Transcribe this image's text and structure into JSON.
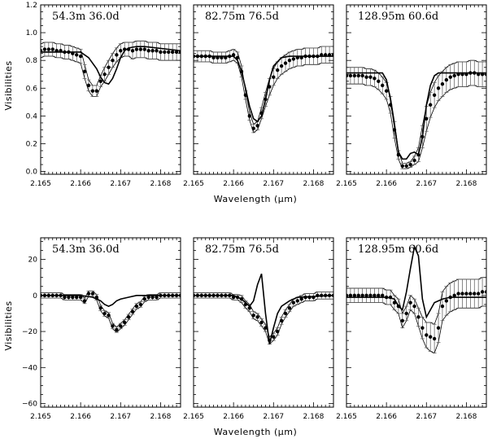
{
  "figure": {
    "top_ylabel": "Visibilities",
    "bottom_ylabel": "Visibilities",
    "top_xlabel": "Wavelength (μm)",
    "bottom_xlabel": "Wavelength (μm)"
  },
  "chart_data": [
    {
      "type": "scatter",
      "row": 0,
      "col": 0,
      "title": "54.3m  36.0d",
      "baseline": "54.3m",
      "angle": "36.0d",
      "xlim": [
        2.165,
        2.1685
      ],
      "ylim": [
        -0.02,
        1.2
      ],
      "yticks": [
        0.0,
        0.2,
        0.4,
        0.6,
        0.8,
        1.0,
        1.2
      ],
      "ytick_labels": [
        "0.0",
        "0.2",
        "0.4",
        "0.6",
        "0.8",
        "1.0",
        "1.2"
      ],
      "xticks": [
        2.165,
        2.166,
        2.167,
        2.168
      ],
      "xtick_labels": [
        "2.165",
        "2.166",
        "2.167",
        "2.168"
      ],
      "xlabel": "Wavelength (μm)",
      "ylabel": "Visibilities",
      "points": {
        "x": [
          2.165,
          2.1651,
          2.1652,
          2.1653,
          2.1654,
          2.1655,
          2.1656,
          2.1657,
          2.1658,
          2.1659,
          2.166,
          2.1661,
          2.1662,
          2.1663,
          2.1664,
          2.1665,
          2.1666,
          2.1667,
          2.1668,
          2.1669,
          2.167,
          2.1671,
          2.1672,
          2.1673,
          2.1674,
          2.1675,
          2.1676,
          2.1677,
          2.1678,
          2.1679,
          2.168,
          2.1681,
          2.1682,
          2.1683,
          2.1684,
          2.1685
        ],
        "y": [
          0.87,
          0.88,
          0.88,
          0.88,
          0.87,
          0.87,
          0.86,
          0.86,
          0.85,
          0.84,
          0.83,
          0.72,
          0.62,
          0.58,
          0.58,
          0.65,
          0.7,
          0.75,
          0.8,
          0.84,
          0.87,
          0.88,
          0.88,
          0.87,
          0.88,
          0.88,
          0.88,
          0.87,
          0.87,
          0.87,
          0.86,
          0.86,
          0.86,
          0.86,
          0.86,
          0.86
        ],
        "err": [
          0.05,
          0.05,
          0.05,
          0.05,
          0.05,
          0.05,
          0.05,
          0.05,
          0.05,
          0.05,
          0.05,
          0.05,
          0.04,
          0.04,
          0.04,
          0.04,
          0.05,
          0.05,
          0.05,
          0.05,
          0.05,
          0.05,
          0.05,
          0.06,
          0.06,
          0.06,
          0.06,
          0.06,
          0.06,
          0.06,
          0.06,
          0.06,
          0.06,
          0.06,
          0.06,
          0.06
        ]
      },
      "model": {
        "x": [
          2.165,
          2.166,
          2.1662,
          2.1664,
          2.1665,
          2.1666,
          2.1667,
          2.1668,
          2.1669,
          2.167,
          2.1671,
          2.1672,
          2.1674,
          2.1676,
          2.1685
        ],
        "y": [
          0.86,
          0.86,
          0.82,
          0.74,
          0.68,
          0.64,
          0.63,
          0.67,
          0.74,
          0.82,
          0.87,
          0.89,
          0.9,
          0.9,
          0.87
        ]
      }
    },
    {
      "type": "scatter",
      "row": 0,
      "col": 1,
      "title": "82.75m  76.5d",
      "baseline": "82.75m",
      "angle": "76.5d",
      "xlim": [
        2.165,
        2.1685
      ],
      "ylim": [
        -0.02,
        1.2
      ],
      "xticks": [
        2.165,
        2.166,
        2.167,
        2.168
      ],
      "xtick_labels": [
        "2.165",
        "2.166",
        "2.167",
        "2.168"
      ],
      "points": {
        "x": [
          2.165,
          2.1651,
          2.1652,
          2.1653,
          2.1654,
          2.1655,
          2.1656,
          2.1657,
          2.1658,
          2.1659,
          2.166,
          2.1661,
          2.1662,
          2.1663,
          2.1664,
          2.1665,
          2.1666,
          2.1667,
          2.1668,
          2.1669,
          2.167,
          2.1671,
          2.1672,
          2.1673,
          2.1674,
          2.1675,
          2.1676,
          2.1677,
          2.1678,
          2.1679,
          2.168,
          2.1681,
          2.1682,
          2.1683,
          2.1684,
          2.1685
        ],
        "y": [
          0.83,
          0.83,
          0.83,
          0.83,
          0.83,
          0.82,
          0.82,
          0.82,
          0.82,
          0.83,
          0.84,
          0.82,
          0.72,
          0.55,
          0.4,
          0.31,
          0.33,
          0.42,
          0.52,
          0.61,
          0.68,
          0.73,
          0.76,
          0.78,
          0.8,
          0.81,
          0.82,
          0.82,
          0.83,
          0.83,
          0.83,
          0.83,
          0.84,
          0.84,
          0.84,
          0.84
        ],
        "err": [
          0.04,
          0.04,
          0.04,
          0.04,
          0.04,
          0.04,
          0.04,
          0.04,
          0.04,
          0.04,
          0.04,
          0.04,
          0.04,
          0.03,
          0.03,
          0.03,
          0.03,
          0.04,
          0.05,
          0.06,
          0.06,
          0.06,
          0.06,
          0.06,
          0.06,
          0.06,
          0.06,
          0.06,
          0.06,
          0.06,
          0.06,
          0.06,
          0.06,
          0.06,
          0.06,
          0.06
        ]
      },
      "model": {
        "x": [
          2.165,
          2.166,
          2.1661,
          2.1662,
          2.1663,
          2.1664,
          2.1665,
          2.1666,
          2.1667,
          2.1668,
          2.1669,
          2.167,
          2.1672,
          2.1674,
          2.1676,
          2.1685
        ],
        "y": [
          0.83,
          0.83,
          0.8,
          0.72,
          0.6,
          0.47,
          0.38,
          0.36,
          0.4,
          0.52,
          0.66,
          0.76,
          0.82,
          0.83,
          0.83,
          0.83
        ]
      }
    },
    {
      "type": "scatter",
      "row": 0,
      "col": 2,
      "title": "128.95m  60.6d",
      "baseline": "128.95m",
      "angle": "60.6d",
      "xlim": [
        2.165,
        2.1685
      ],
      "ylim": [
        -0.02,
        1.2
      ],
      "xticks": [
        2.165,
        2.166,
        2.167,
        2.168
      ],
      "xtick_labels": [
        "2.165",
        "2.166",
        "2.167",
        "2.168"
      ],
      "points": {
        "x": [
          2.165,
          2.1651,
          2.1652,
          2.1653,
          2.1654,
          2.1655,
          2.1656,
          2.1657,
          2.1658,
          2.1659,
          2.166,
          2.1661,
          2.1662,
          2.1663,
          2.1664,
          2.1665,
          2.1666,
          2.1667,
          2.1668,
          2.1669,
          2.167,
          2.1671,
          2.1672,
          2.1673,
          2.1674,
          2.1675,
          2.1676,
          2.1677,
          2.1678,
          2.1679,
          2.168,
          2.1681,
          2.1682,
          2.1683,
          2.1684,
          2.1685
        ],
        "y": [
          0.69,
          0.69,
          0.69,
          0.69,
          0.69,
          0.68,
          0.68,
          0.67,
          0.65,
          0.62,
          0.58,
          0.48,
          0.3,
          0.12,
          0.04,
          0.04,
          0.05,
          0.08,
          0.12,
          0.25,
          0.38,
          0.48,
          0.55,
          0.6,
          0.63,
          0.66,
          0.68,
          0.69,
          0.7,
          0.7,
          0.7,
          0.71,
          0.71,
          0.7,
          0.7,
          0.7
        ],
        "err": [
          0.06,
          0.06,
          0.06,
          0.06,
          0.06,
          0.06,
          0.06,
          0.06,
          0.06,
          0.06,
          0.06,
          0.06,
          0.06,
          0.03,
          0.02,
          0.02,
          0.02,
          0.03,
          0.05,
          0.08,
          0.09,
          0.09,
          0.09,
          0.09,
          0.09,
          0.09,
          0.09,
          0.09,
          0.09,
          0.09,
          0.09,
          0.09,
          0.09,
          0.09,
          0.09,
          0.09
        ]
      },
      "model": {
        "x": [
          2.165,
          2.1659,
          2.166,
          2.1661,
          2.1662,
          2.1663,
          2.1664,
          2.1665,
          2.1666,
          2.1667,
          2.1668,
          2.1669,
          2.167,
          2.1671,
          2.1672,
          2.1673,
          2.1675,
          2.1685
        ],
        "y": [
          0.71,
          0.71,
          0.66,
          0.52,
          0.33,
          0.14,
          0.09,
          0.09,
          0.13,
          0.14,
          0.12,
          0.25,
          0.48,
          0.62,
          0.69,
          0.71,
          0.71,
          0.71
        ]
      }
    },
    {
      "type": "scatter",
      "row": 1,
      "col": 0,
      "title": "54.3m  36.0d",
      "baseline": "54.3m",
      "angle": "36.0d",
      "xlim": [
        2.165,
        2.1685
      ],
      "ylim": [
        -62,
        32
      ],
      "yticks": [
        -60,
        -40,
        -20,
        0,
        20
      ],
      "ytick_labels": [
        "−60",
        "−40",
        "−20",
        "0",
        "20"
      ],
      "xticks": [
        2.165,
        2.166,
        2.167,
        2.168
      ],
      "xtick_labels": [
        "2.165",
        "2.166",
        "2.167",
        "2.168"
      ],
      "xlabel": "Wavelength (μm)",
      "ylabel": "Visibilities",
      "points": {
        "x": [
          2.165,
          2.1651,
          2.1652,
          2.1653,
          2.1654,
          2.1655,
          2.1656,
          2.1657,
          2.1658,
          2.1659,
          2.166,
          2.1661,
          2.1662,
          2.1663,
          2.1664,
          2.1665,
          2.1666,
          2.1667,
          2.1668,
          2.1669,
          2.167,
          2.1671,
          2.1672,
          2.1673,
          2.1674,
          2.1675,
          2.1676,
          2.1677,
          2.1678,
          2.1679,
          2.168,
          2.1681,
          2.1682,
          2.1683,
          2.1684,
          2.1685
        ],
        "y": [
          0,
          0,
          0,
          0,
          0,
          0,
          -1,
          -1,
          -1,
          -1,
          -1,
          -3,
          1,
          1,
          -1,
          -7,
          -10,
          -11,
          -17,
          -19,
          -17,
          -15,
          -12,
          -9,
          -6,
          -5,
          -2,
          -1,
          -1,
          -1,
          0,
          0,
          0,
          0,
          0,
          0
        ],
        "err": [
          1.5,
          1.5,
          1.5,
          1.5,
          1.5,
          1.5,
          1.5,
          1.5,
          1.5,
          1.5,
          1.5,
          1.5,
          1.5,
          1.5,
          1.5,
          1.5,
          1.5,
          1.5,
          1.5,
          1.5,
          1.5,
          1.5,
          1.5,
          1.5,
          1.5,
          1.5,
          1.5,
          1.5,
          1.5,
          1.5,
          1.5,
          1.5,
          1.5,
          1.5,
          1.5,
          1.5
        ]
      },
      "model": {
        "x": [
          2.165,
          2.166,
          2.1663,
          2.1665,
          2.1666,
          2.1667,
          2.1668,
          2.1669,
          2.167,
          2.1672,
          2.1674,
          2.1676,
          2.1685
        ],
        "y": [
          0,
          0,
          -1,
          -3,
          -5,
          -6,
          -5,
          -3,
          -2,
          -1,
          0,
          0,
          0
        ]
      }
    },
    {
      "type": "scatter",
      "row": 1,
      "col": 1,
      "title": "82.75m  76.5d",
      "baseline": "82.75m",
      "angle": "76.5d",
      "xlim": [
        2.165,
        2.1685
      ],
      "ylim": [
        -62,
        32
      ],
      "xticks": [
        2.165,
        2.166,
        2.167,
        2.168
      ],
      "xtick_labels": [
        "2.165",
        "2.166",
        "2.167",
        "2.168"
      ],
      "points": {
        "x": [
          2.165,
          2.1651,
          2.1652,
          2.1653,
          2.1654,
          2.1655,
          2.1656,
          2.1657,
          2.1658,
          2.1659,
          2.166,
          2.1661,
          2.1662,
          2.1663,
          2.1664,
          2.1665,
          2.1666,
          2.1667,
          2.1668,
          2.1669,
          2.167,
          2.1671,
          2.1672,
          2.1673,
          2.1674,
          2.1675,
          2.1676,
          2.1677,
          2.1678,
          2.1679,
          2.168,
          2.1681,
          2.1682,
          2.1683,
          2.1684,
          2.1685
        ],
        "y": [
          0,
          0,
          0,
          0,
          0,
          0,
          0,
          0,
          0,
          0,
          -1,
          -1,
          -2,
          -5,
          -7,
          -11,
          -12,
          -15,
          -18,
          -25,
          -23,
          -20,
          -14,
          -10,
          -7,
          -4,
          -3,
          -2,
          -1,
          -1,
          -1,
          0,
          0,
          0,
          0,
          0
        ],
        "err": [
          1.5,
          1.5,
          1.5,
          1.5,
          1.5,
          1.5,
          1.5,
          1.5,
          1.5,
          1.5,
          1.5,
          1.5,
          2,
          2,
          2,
          2,
          2,
          2,
          2,
          2,
          2,
          2,
          2,
          2,
          2,
          2,
          2,
          2,
          2,
          2,
          2,
          2,
          2,
          2,
          2,
          2
        ]
      },
      "model": {
        "x": [
          2.165,
          2.166,
          2.1662,
          2.1664,
          2.1665,
          2.1666,
          2.1667,
          2.1668,
          2.1669,
          2.167,
          2.1671,
          2.1672,
          2.1674,
          2.1676,
          2.1685
        ],
        "y": [
          0,
          0,
          -2,
          -6,
          -3,
          6,
          12,
          -10,
          -27,
          -18,
          -10,
          -6,
          -3,
          -1,
          0
        ]
      }
    },
    {
      "type": "scatter",
      "row": 1,
      "col": 2,
      "title": "128.95m  60.6d",
      "baseline": "128.95m",
      "angle": "60.6d",
      "xlim": [
        2.165,
        2.1685
      ],
      "ylim": [
        -62,
        32
      ],
      "xticks": [
        2.165,
        2.166,
        2.167,
        2.168
      ],
      "xtick_labels": [
        "2.165",
        "2.166",
        "2.167",
        "2.168"
      ],
      "points": {
        "x": [
          2.165,
          2.1651,
          2.1652,
          2.1653,
          2.1654,
          2.1655,
          2.1656,
          2.1657,
          2.1658,
          2.1659,
          2.166,
          2.1661,
          2.1662,
          2.1663,
          2.1664,
          2.1665,
          2.1666,
          2.1667,
          2.1668,
          2.1669,
          2.167,
          2.1671,
          2.1672,
          2.1673,
          2.1674,
          2.1675,
          2.1676,
          2.1677,
          2.1678,
          2.1679,
          2.168,
          2.1681,
          2.1682,
          2.1683,
          2.1684,
          2.1685
        ],
        "y": [
          0,
          0,
          0,
          0,
          0,
          0,
          0,
          0,
          0,
          0,
          -1,
          -1,
          -4,
          -6,
          -14,
          -10,
          -4,
          -6,
          -12,
          -18,
          -22,
          -23,
          -24,
          -18,
          -6,
          -3,
          -1,
          0,
          1,
          1,
          1,
          1,
          1,
          1,
          2,
          2
        ],
        "err": [
          4,
          4,
          4,
          4,
          4,
          4,
          4,
          4,
          4,
          4,
          4,
          4,
          4,
          4,
          4,
          4,
          4,
          4,
          5,
          6,
          7,
          8,
          8,
          8,
          8,
          8,
          8,
          8,
          8,
          8,
          8,
          8,
          8,
          8,
          8,
          8
        ]
      },
      "model": {
        "x": [
          2.165,
          2.166,
          2.1662,
          2.1663,
          2.1664,
          2.1665,
          2.1666,
          2.1667,
          2.1668,
          2.1669,
          2.167,
          2.1671,
          2.1672,
          2.1674,
          2.1676,
          2.1685
        ],
        "y": [
          -1,
          -1,
          -2,
          -6,
          -8,
          2,
          15,
          27,
          22,
          -2,
          -12,
          -8,
          -4,
          -2,
          -1,
          -1
        ]
      }
    }
  ]
}
